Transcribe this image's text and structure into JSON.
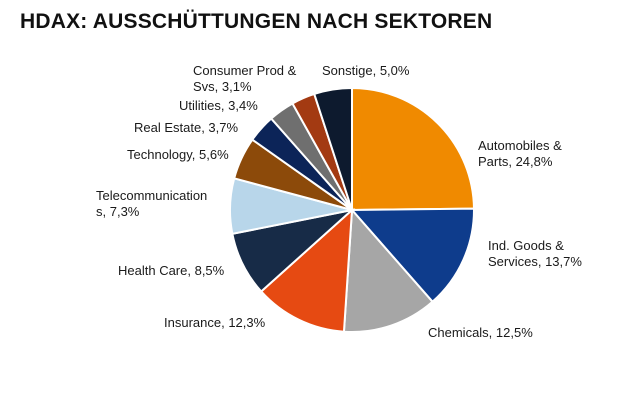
{
  "chart_data": {
    "type": "pie",
    "title": "HDAX: AUSSCHÜTTUNGEN NACH SEKTOREN",
    "start_angle_deg": 0,
    "direction": "clockwise",
    "slices": [
      {
        "label": "Automobiles & Parts, 24,8%",
        "value": 24.8,
        "color": "#f08a00"
      },
      {
        "label": "Ind. Goods & Services, 13,7%",
        "value": 13.7,
        "color": "#0e3c8c"
      },
      {
        "label": "Chemicals, 12,5%",
        "value": 12.5,
        "color": "#a6a6a6"
      },
      {
        "label": "Insurance, 12,3%",
        "value": 12.3,
        "color": "#e64a12"
      },
      {
        "label": "Health Care, 8,5%",
        "value": 8.5,
        "color": "#172b47"
      },
      {
        "label": "Telecommunications, 7,3%",
        "value": 7.3,
        "color": "#b8d6ea"
      },
      {
        "label": "Technology, 5,6%",
        "value": 5.6,
        "color": "#8c4a0a"
      },
      {
        "label": "Real Estate, 3,7%",
        "value": 3.7,
        "color": "#0c2458"
      },
      {
        "label": "Utilities, 3,4%",
        "value": 3.4,
        "color": "#6f6f6f"
      },
      {
        "label": "Consumer Prod & Svs, 3,1%",
        "value": 3.1,
        "color": "#a33a12"
      },
      {
        "label": "Sonstige, 5,0%",
        "value": 5.0,
        "color": "#0d1a2e"
      }
    ]
  }
}
